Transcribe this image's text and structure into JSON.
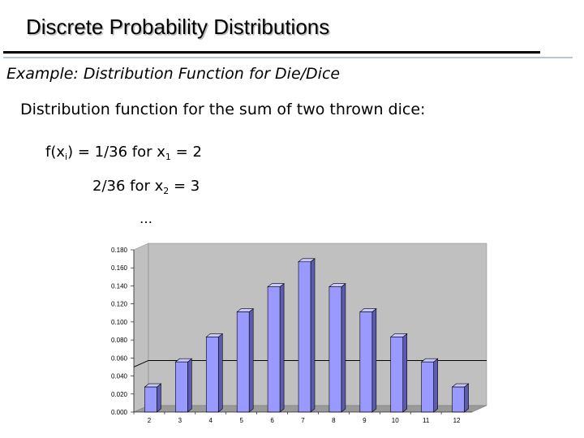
{
  "slide": {
    "title": "Discrete Probability Distributions",
    "example": "Example:  Distribution Function for Die/Dice",
    "intro": "Distribution function for the sum of two thrown dice:",
    "eq1": {
      "lhs_prefix": "f(x",
      "lhs_sub": "i",
      "lhs_suffix": ") = ",
      "value": "1/36",
      "for": "  for  x",
      "sub": "1",
      "rhs": " = 2"
    },
    "eq2": {
      "value": "2/36",
      "for": "  for  x",
      "sub": "2",
      "rhs": " = 3"
    },
    "ellipsis": "…"
  },
  "chart_data": {
    "type": "bar",
    "categories": [
      "2",
      "3",
      "4",
      "5",
      "6",
      "7",
      "8",
      "9",
      "10",
      "11",
      "12"
    ],
    "values": [
      0.0278,
      0.0556,
      0.0833,
      0.1111,
      0.1389,
      0.1667,
      0.1389,
      0.1111,
      0.0833,
      0.0556,
      0.0278
    ],
    "ytick_labels": [
      "0.000",
      "0.020",
      "0.040",
      "0.060",
      "0.080",
      "0.100",
      "0.120",
      "0.140",
      "0.160",
      "0.180"
    ],
    "ylim": [
      0,
      0.18
    ],
    "reference_line": 0.05,
    "grid": false,
    "title": "",
    "xlabel": "",
    "ylabel": "",
    "colors": {
      "bar_front": "#9999ff",
      "bar_top": "#c8c8ff",
      "bar_side": "#5c5cae",
      "plot_wall": "#c0c0c0",
      "plot_floor": "#9a9a9a"
    }
  }
}
